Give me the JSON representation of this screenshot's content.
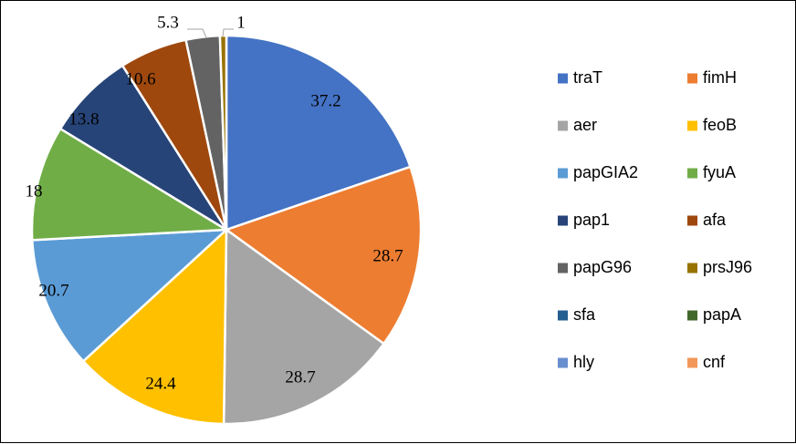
{
  "chart_data": {
    "type": "pie",
    "title": "",
    "slices": [
      {
        "label": "traT",
        "value": 37.2,
        "color": "#4472C4",
        "data_label": "37.2"
      },
      {
        "label": "fimH",
        "value": 28.7,
        "color": "#ED7D31",
        "data_label": "28.7"
      },
      {
        "label": "aer",
        "value": 28.7,
        "color": "#A5A5A5",
        "data_label": "28.7"
      },
      {
        "label": "feoB",
        "value": 24.4,
        "color": "#FFC000",
        "data_label": "24.4"
      },
      {
        "label": "papGIA2",
        "value": 20.7,
        "color": "#5B9BD5",
        "data_label": "20.7"
      },
      {
        "label": "fyuA",
        "value": 18,
        "color": "#70AD47",
        "data_label": "18"
      },
      {
        "label": "pap1",
        "value": 13.8,
        "color": "#264478",
        "data_label": "13.8"
      },
      {
        "label": "afa",
        "value": 10.6,
        "color": "#9E480E",
        "data_label": "10.6"
      },
      {
        "label": "papG96",
        "value": 5.3,
        "color": "#636363",
        "data_label": "5.3"
      },
      {
        "label": "prsJ96",
        "value": 1,
        "color": "#997300",
        "data_label": "1"
      },
      {
        "label": "sfa",
        "value": 0,
        "color": "#255E91",
        "data_label": ""
      },
      {
        "label": "papA",
        "value": 0,
        "color": "#43682B",
        "data_label": ""
      },
      {
        "label": "hly",
        "value": 0,
        "color": "#698ED0",
        "data_label": ""
      },
      {
        "label": "cnf",
        "value": 0,
        "color": "#F1975A",
        "data_label": ""
      }
    ],
    "legend": {
      "position": "right",
      "columns": 2
    }
  }
}
